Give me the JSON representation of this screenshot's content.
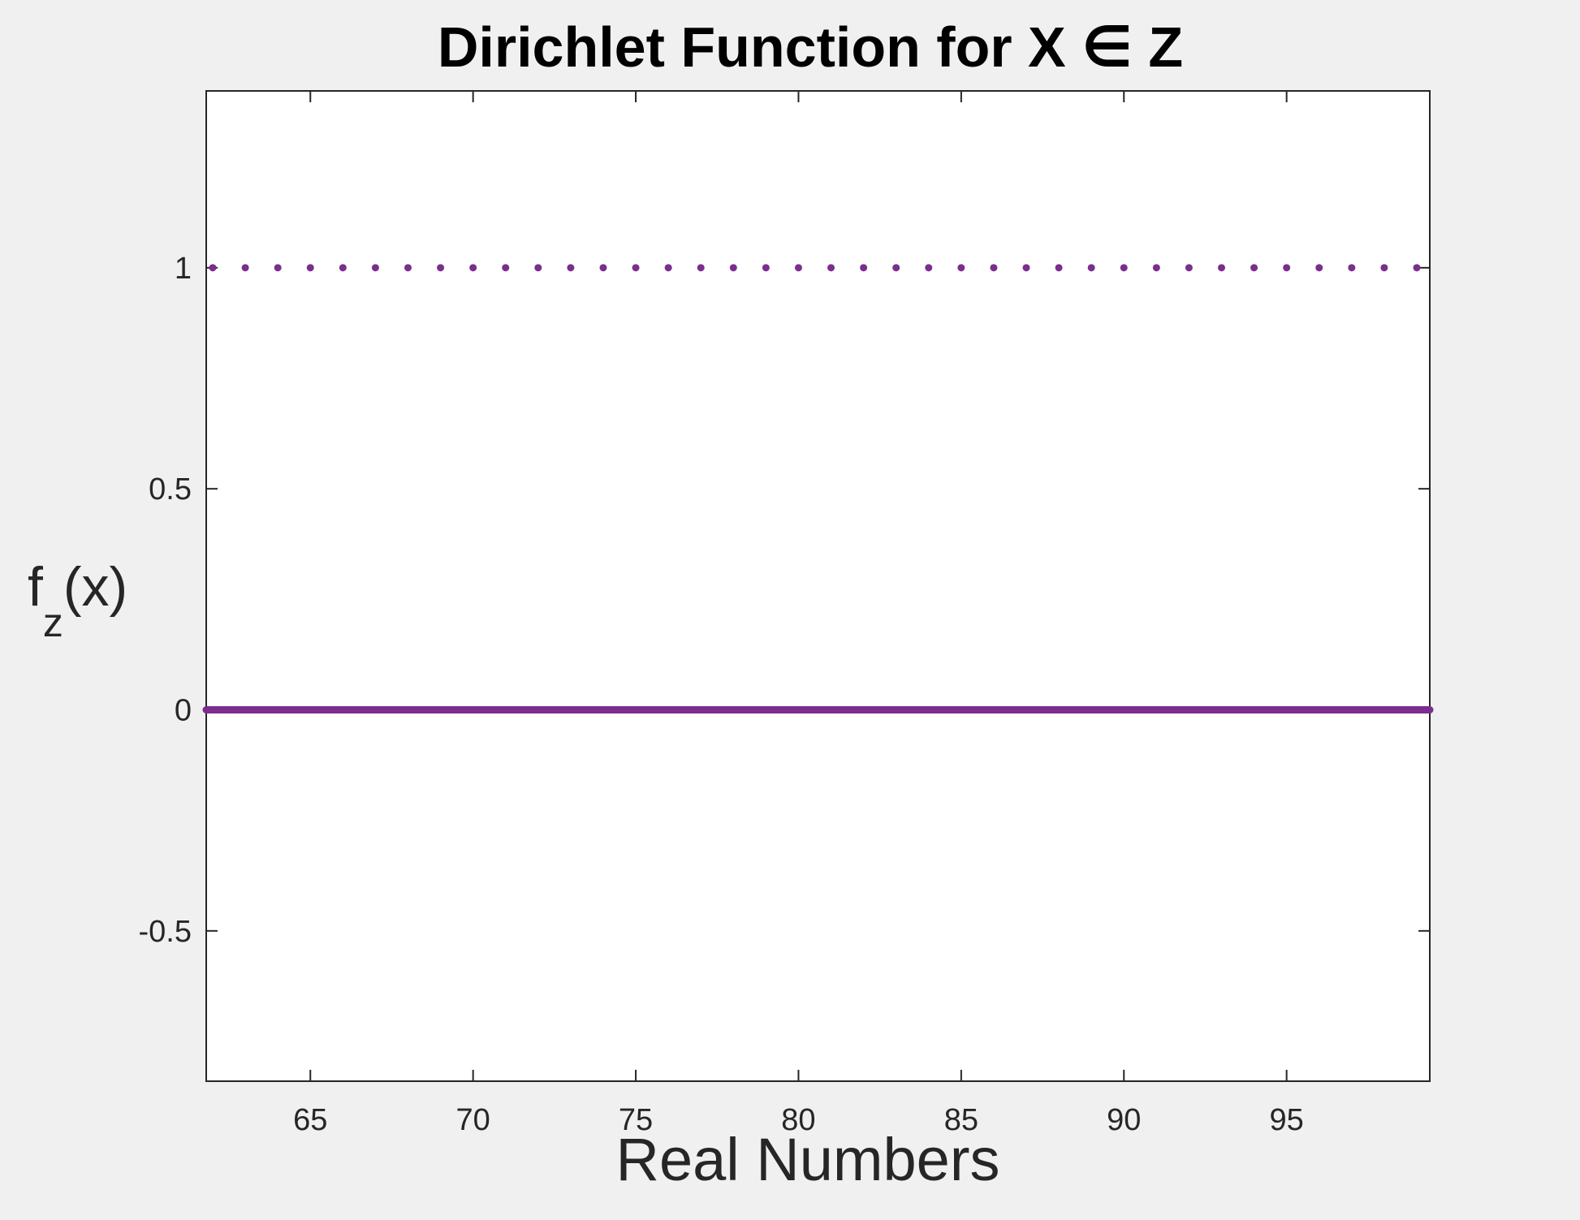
{
  "chart_data": {
    "type": "scatter",
    "title": "Dirichlet Function for X ∈ Z",
    "xlabel": "Real Numbers",
    "ylabel": {
      "base": "f",
      "subscript": "z",
      "suffix": "(x)"
    },
    "xlim": [
      61.8,
      99.4
    ],
    "ylim": [
      -0.84,
      1.4
    ],
    "xticks": [
      65,
      70,
      75,
      80,
      85,
      90,
      95
    ],
    "yticks": [
      -0.5,
      0,
      0.5,
      1
    ],
    "ytick_labels": [
      "-0.5",
      "0",
      "0.5",
      "1"
    ],
    "grid": false,
    "series": [
      {
        "style": "dots",
        "color": "#7b2e8e",
        "x": [
          62,
          63,
          64,
          65,
          66,
          67,
          68,
          69,
          70,
          71,
          72,
          73,
          74,
          75,
          76,
          77,
          78,
          79,
          80,
          81,
          82,
          83,
          84,
          85,
          86,
          87,
          88,
          89,
          90,
          91,
          92,
          93,
          94,
          95,
          96,
          97,
          98,
          99
        ],
        "y": [
          1,
          1,
          1,
          1,
          1,
          1,
          1,
          1,
          1,
          1,
          1,
          1,
          1,
          1,
          1,
          1,
          1,
          1,
          1,
          1,
          1,
          1,
          1,
          1,
          1,
          1,
          1,
          1,
          1,
          1,
          1,
          1,
          1,
          1,
          1,
          1,
          1,
          1
        ]
      },
      {
        "style": "line",
        "color": "#7b2e8e",
        "x": [
          61.8,
          99.4
        ],
        "y": [
          0,
          0
        ]
      }
    ]
  }
}
